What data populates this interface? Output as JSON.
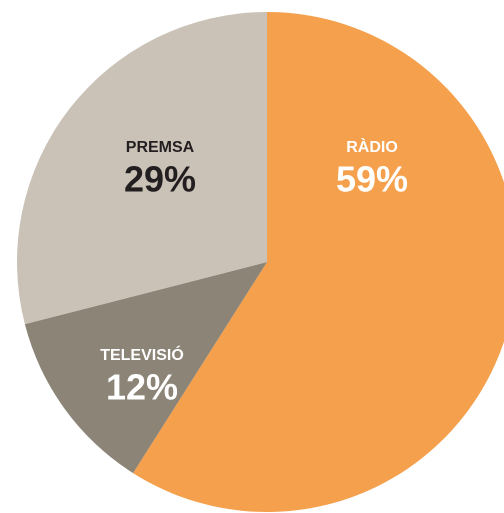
{
  "chart_data": {
    "type": "pie",
    "categories": [
      "RÀDIO",
      "TELEVISIÓ",
      "PREMSA"
    ],
    "values": [
      59,
      12,
      29
    ],
    "value_labels": [
      "59%",
      "12%",
      "29%"
    ],
    "colors": [
      "#f5a04c",
      "#8b8477",
      "#cac2b7"
    ],
    "label_colors": [
      "#ffffff",
      "#ffffff",
      "#231f20"
    ]
  }
}
